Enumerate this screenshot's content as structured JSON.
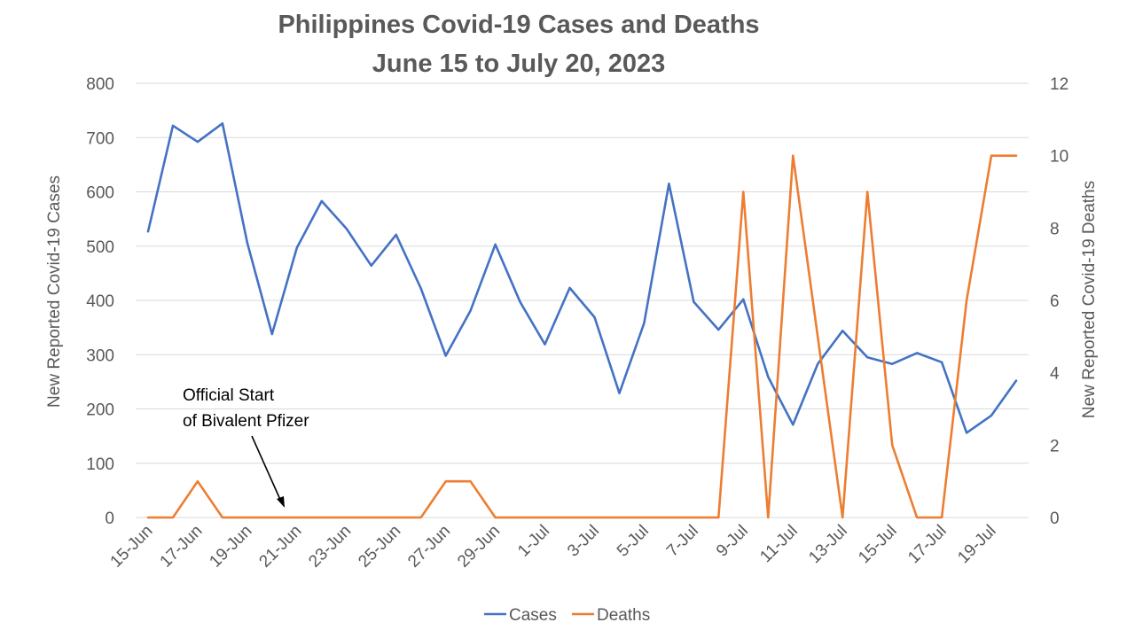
{
  "chart_data": {
    "type": "line",
    "title": [
      "Philippines Covid-19 Cases and Deaths",
      "June 15 to July 20, 2023"
    ],
    "x": [
      "15-Jun",
      "16-Jun",
      "17-Jun",
      "18-Jun",
      "19-Jun",
      "20-Jun",
      "21-Jun",
      "22-Jun",
      "23-Jun",
      "24-Jun",
      "25-Jun",
      "26-Jun",
      "27-Jun",
      "28-Jun",
      "29-Jun",
      "30-Jun",
      "1-Jul",
      "2-Jul",
      "3-Jul",
      "4-Jul",
      "5-Jul",
      "6-Jul",
      "7-Jul",
      "8-Jul",
      "9-Jul",
      "10-Jul",
      "11-Jul",
      "12-Jul",
      "13-Jul",
      "14-Jul",
      "15-Jul",
      "16-Jul",
      "17-Jul",
      "18-Jul",
      "19-Jul",
      "20-Jul"
    ],
    "xtick_labels": [
      "15-Jun",
      "17-Jun",
      "19-Jun",
      "21-Jun",
      "23-Jun",
      "25-Jun",
      "27-Jun",
      "29-Jun",
      "1-Jul",
      "3-Jul",
      "5-Jul",
      "7-Jul",
      "9-Jul",
      "11-Jul",
      "13-Jul",
      "15-Jul",
      "17-Jul",
      "19-Jul"
    ],
    "series": [
      {
        "name": "Cases",
        "axis": "left",
        "color": "#4472C4",
        "values": [
          527,
          722,
          692,
          726,
          506,
          338,
          497,
          583,
          532,
          464,
          521,
          422,
          298,
          381,
          503,
          397,
          319,
          423,
          369,
          229,
          358,
          615,
          397,
          346,
          402,
          259,
          171,
          283,
          344,
          295,
          283,
          303,
          286,
          156,
          188,
          252
        ]
      },
      {
        "name": "Deaths",
        "axis": "right",
        "color": "#ED7D31",
        "values": [
          0,
          0,
          1,
          0,
          0,
          0,
          0,
          0,
          0,
          0,
          0,
          0,
          1,
          1,
          0,
          0,
          0,
          0,
          0,
          0,
          0,
          0,
          0,
          0,
          9,
          0,
          10,
          5,
          0,
          9,
          2,
          0,
          0,
          6,
          10,
          10
        ]
      }
    ],
    "ylabel": "New Reported Covid-19 Cases",
    "y2label": "New Reported Covid-19 Deaths",
    "ylim": [
      0,
      800
    ],
    "y2lim": [
      0,
      12
    ],
    "yticks": [
      0,
      100,
      200,
      300,
      400,
      500,
      600,
      700,
      800
    ],
    "y2ticks": [
      0,
      2,
      4,
      6,
      8,
      10,
      12
    ],
    "grid": true,
    "legend": "bottom",
    "annotation": {
      "lines": [
        "Official Start",
        "of Bivalent Pfizer"
      ],
      "points_to": "20-Jun"
    }
  }
}
